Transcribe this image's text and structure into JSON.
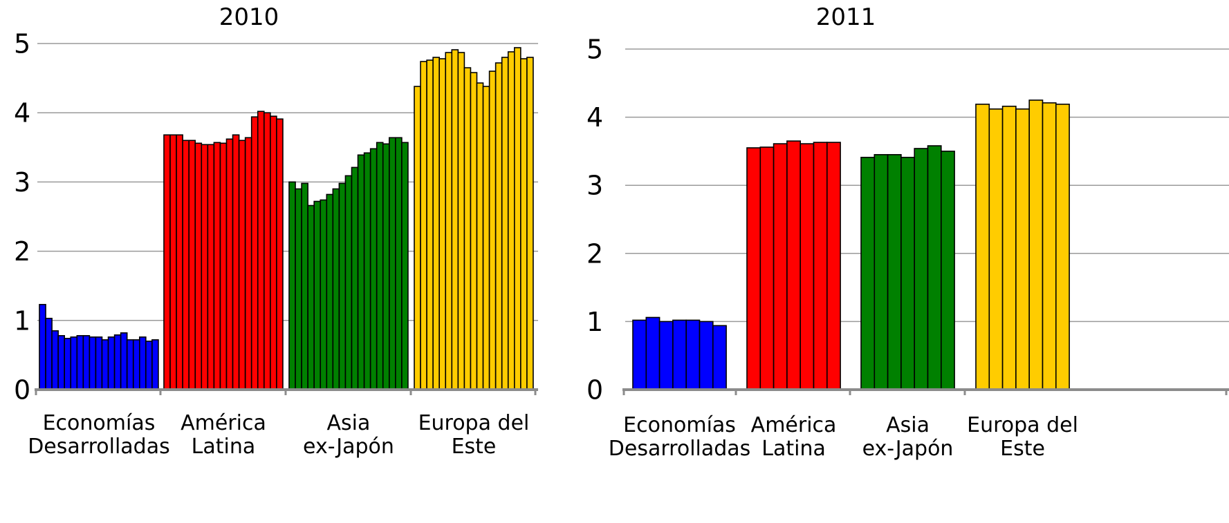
{
  "chart_data": [
    {
      "type": "bar",
      "title": "2010",
      "xlabel": "",
      "ylabel": "",
      "ylim": [
        0,
        5
      ],
      "yticks": [
        "0",
        "1",
        "2",
        "3",
        "4",
        "5"
      ],
      "grid": true,
      "legend": "none",
      "groups": [
        {
          "label_lines": [
            "Economías",
            "Desarrolladas"
          ],
          "color": "#0000ff",
          "values": [
            1.23,
            1.03,
            0.85,
            0.78,
            0.74,
            0.76,
            0.78,
            0.78,
            0.76,
            0.76,
            0.72,
            0.76,
            0.79,
            0.82,
            0.72,
            0.72,
            0.76,
            0.7,
            0.72
          ]
        },
        {
          "label_lines": [
            "América",
            "Latina"
          ],
          "color": "#ff0000",
          "values": [
            3.68,
            3.68,
            3.68,
            3.6,
            3.6,
            3.56,
            3.54,
            3.54,
            3.57,
            3.56,
            3.62,
            3.68,
            3.6,
            3.64,
            3.94,
            4.02,
            4.0,
            3.95,
            3.91
          ]
        },
        {
          "label_lines": [
            "Asia",
            "ex-Japón"
          ],
          "color": "#008000",
          "values": [
            3.0,
            2.9,
            2.98,
            2.66,
            2.72,
            2.74,
            2.82,
            2.9,
            2.98,
            3.09,
            3.21,
            3.39,
            3.42,
            3.48,
            3.57,
            3.55,
            3.64,
            3.64,
            3.57
          ]
        },
        {
          "label_lines": [
            "Europa del",
            "Este"
          ],
          "color": "#ffcc00",
          "values": [
            4.38,
            4.74,
            4.76,
            4.8,
            4.78,
            4.87,
            4.91,
            4.87,
            4.65,
            4.58,
            4.43,
            4.38,
            4.6,
            4.72,
            4.8,
            4.88,
            4.94,
            4.78,
            4.8
          ]
        }
      ]
    },
    {
      "type": "bar",
      "title": "2011",
      "xlabel": "",
      "ylabel": "",
      "ylim": [
        0,
        5
      ],
      "yticks": [
        "0",
        "1",
        "2",
        "3",
        "4",
        "5"
      ],
      "grid": true,
      "legend": "none",
      "groups": [
        {
          "label_lines": [
            "Economías",
            "Desarrolladas"
          ],
          "color": "#0000ff",
          "values": [
            1.02,
            1.06,
            1.0,
            1.02,
            1.02,
            1.0,
            0.94
          ]
        },
        {
          "label_lines": [
            "América",
            "Latina"
          ],
          "color": "#ff0000",
          "values": [
            3.55,
            3.56,
            3.61,
            3.65,
            3.61,
            3.63,
            3.63
          ]
        },
        {
          "label_lines": [
            "Asia",
            "ex-Japón"
          ],
          "color": "#008000",
          "values": [
            3.41,
            3.45,
            3.45,
            3.41,
            3.54,
            3.58,
            3.5
          ]
        },
        {
          "label_lines": [
            "Europa del",
            "Este"
          ],
          "color": "#ffcc00",
          "values": [
            4.19,
            4.12,
            4.16,
            4.12,
            4.25,
            4.21,
            4.19
          ]
        }
      ]
    }
  ]
}
